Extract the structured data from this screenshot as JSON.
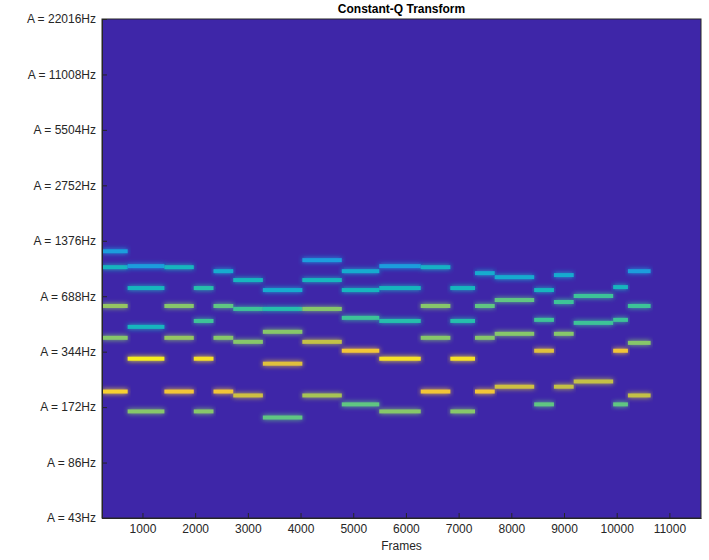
{
  "chart_data": {
    "type": "spectrogram",
    "title": "Constant-Q Transform",
    "x_label": "Frames",
    "log": "y",
    "xlim": [
      232,
      11600
    ],
    "xticks": [
      1000,
      2000,
      3000,
      4000,
      5000,
      6000,
      7000,
      8000,
      9000,
      10000,
      11000
    ],
    "ylim": [
      43,
      22016
    ],
    "yticks": [
      {
        "value": 43,
        "label": "A = 43Hz"
      },
      {
        "value": 86,
        "label": "A = 86Hz"
      },
      {
        "value": 172,
        "label": "A = 172Hz"
      },
      {
        "value": 344,
        "label": "A = 344Hz"
      },
      {
        "value": 688,
        "label": "A = 688Hz"
      },
      {
        "value": 1376,
        "label": "A = 1376Hz"
      },
      {
        "value": 2752,
        "label": "A = 2752Hz"
      },
      {
        "value": 5504,
        "label": "A = 5504Hz"
      },
      {
        "value": 11008,
        "label": "A = 11008Hz"
      },
      {
        "value": 22016,
        "label": "A = 22016Hz"
      }
    ],
    "clim": [
      0,
      1
    ],
    "segments": [
      {
        "x0": 232,
        "x1": 719,
        "freq": 209,
        "level": 0.85
      },
      {
        "x0": 232,
        "x1": 719,
        "freq": 409,
        "level": 0.6
      },
      {
        "x0": 232,
        "x1": 719,
        "freq": 609,
        "level": 0.62
      },
      {
        "x0": 232,
        "x1": 719,
        "freq": 989,
        "level": 0.4
      },
      {
        "x0": 232,
        "x1": 719,
        "freq": 1207,
        "level": 0.3
      },
      {
        "x0": 719,
        "x1": 1416,
        "freq": 163,
        "level": 0.6
      },
      {
        "x0": 719,
        "x1": 1416,
        "freq": 315,
        "level": 0.95
      },
      {
        "x0": 719,
        "x1": 1416,
        "freq": 469,
        "level": 0.4
      },
      {
        "x0": 719,
        "x1": 1416,
        "freq": 762,
        "level": 0.4
      },
      {
        "x0": 719,
        "x1": 1416,
        "freq": 1002,
        "level": 0.3
      },
      {
        "x0": 1416,
        "x1": 1974,
        "freq": 209,
        "level": 0.8
      },
      {
        "x0": 1416,
        "x1": 1974,
        "freq": 409,
        "level": 0.62
      },
      {
        "x0": 1416,
        "x1": 1974,
        "freq": 609,
        "level": 0.6
      },
      {
        "x0": 1416,
        "x1": 1974,
        "freq": 989,
        "level": 0.4
      },
      {
        "x0": 1974,
        "x1": 2348,
        "freq": 163,
        "level": 0.6
      },
      {
        "x0": 1974,
        "x1": 2348,
        "freq": 315,
        "level": 0.9
      },
      {
        "x0": 1974,
        "x1": 2348,
        "freq": 505,
        "level": 0.5
      },
      {
        "x0": 1974,
        "x1": 2348,
        "freq": 762,
        "level": 0.45
      },
      {
        "x0": 2348,
        "x1": 2723,
        "freq": 209,
        "level": 0.8
      },
      {
        "x0": 2348,
        "x1": 2723,
        "freq": 409,
        "level": 0.6
      },
      {
        "x0": 2348,
        "x1": 2723,
        "freq": 609,
        "level": 0.55
      },
      {
        "x0": 2348,
        "x1": 2723,
        "freq": 941,
        "level": 0.35
      },
      {
        "x0": 2723,
        "x1": 3285,
        "freq": 199,
        "level": 0.72
      },
      {
        "x0": 2723,
        "x1": 3285,
        "freq": 389,
        "level": 0.6
      },
      {
        "x0": 2723,
        "x1": 3285,
        "freq": 587,
        "level": 0.5
      },
      {
        "x0": 2723,
        "x1": 3285,
        "freq": 842,
        "level": 0.4
      },
      {
        "x0": 3285,
        "x1": 4034,
        "freq": 151,
        "level": 0.55
      },
      {
        "x0": 3285,
        "x1": 4034,
        "freq": 296,
        "level": 0.75
      },
      {
        "x0": 3285,
        "x1": 4034,
        "freq": 441,
        "level": 0.6
      },
      {
        "x0": 3285,
        "x1": 4034,
        "freq": 587,
        "level": 0.45
      },
      {
        "x0": 3285,
        "x1": 4034,
        "freq": 743,
        "level": 0.35
      },
      {
        "x0": 4034,
        "x1": 4783,
        "freq": 199,
        "level": 0.65
      },
      {
        "x0": 4034,
        "x1": 4783,
        "freq": 389,
        "level": 0.7
      },
      {
        "x0": 4034,
        "x1": 4783,
        "freq": 587,
        "level": 0.6
      },
      {
        "x0": 4034,
        "x1": 4783,
        "freq": 842,
        "level": 0.4
      },
      {
        "x0": 4034,
        "x1": 4783,
        "freq": 1080,
        "level": 0.3
      },
      {
        "x0": 4783,
        "x1": 5494,
        "freq": 178,
        "level": 0.55
      },
      {
        "x0": 4783,
        "x1": 5494,
        "freq": 348,
        "level": 0.8
      },
      {
        "x0": 4783,
        "x1": 5494,
        "freq": 525,
        "level": 0.5
      },
      {
        "x0": 4783,
        "x1": 5494,
        "freq": 743,
        "level": 0.4
      },
      {
        "x0": 4783,
        "x1": 5494,
        "freq": 941,
        "level": 0.35
      },
      {
        "x0": 5494,
        "x1": 6281,
        "freq": 163,
        "level": 0.6
      },
      {
        "x0": 5494,
        "x1": 6281,
        "freq": 315,
        "level": 0.9
      },
      {
        "x0": 5494,
        "x1": 6281,
        "freq": 505,
        "level": 0.45
      },
      {
        "x0": 5494,
        "x1": 6281,
        "freq": 762,
        "level": 0.4
      },
      {
        "x0": 5494,
        "x1": 6281,
        "freq": 1002,
        "level": 0.3
      },
      {
        "x0": 6281,
        "x1": 6843,
        "freq": 209,
        "level": 0.8
      },
      {
        "x0": 6281,
        "x1": 6843,
        "freq": 409,
        "level": 0.6
      },
      {
        "x0": 6281,
        "x1": 6843,
        "freq": 609,
        "level": 0.6
      },
      {
        "x0": 6281,
        "x1": 6843,
        "freq": 989,
        "level": 0.38
      },
      {
        "x0": 6843,
        "x1": 7311,
        "freq": 163,
        "level": 0.6
      },
      {
        "x0": 6843,
        "x1": 7311,
        "freq": 315,
        "level": 0.9
      },
      {
        "x0": 6843,
        "x1": 7311,
        "freq": 505,
        "level": 0.45
      },
      {
        "x0": 6843,
        "x1": 7311,
        "freq": 762,
        "level": 0.4
      },
      {
        "x0": 7311,
        "x1": 7685,
        "freq": 209,
        "level": 0.8
      },
      {
        "x0": 7311,
        "x1": 7685,
        "freq": 409,
        "level": 0.6
      },
      {
        "x0": 7311,
        "x1": 7685,
        "freq": 609,
        "level": 0.55
      },
      {
        "x0": 7311,
        "x1": 7685,
        "freq": 918,
        "level": 0.35
      },
      {
        "x0": 7685,
        "x1": 8434,
        "freq": 222,
        "level": 0.72
      },
      {
        "x0": 7685,
        "x1": 8434,
        "freq": 430,
        "level": 0.6
      },
      {
        "x0": 7685,
        "x1": 8434,
        "freq": 656,
        "level": 0.55
      },
      {
        "x0": 7685,
        "x1": 8434,
        "freq": 873,
        "level": 0.35
      },
      {
        "x0": 8434,
        "x1": 8809,
        "freq": 178,
        "level": 0.55
      },
      {
        "x0": 8434,
        "x1": 8809,
        "freq": 348,
        "level": 0.75
      },
      {
        "x0": 8434,
        "x1": 8809,
        "freq": 512,
        "level": 0.5
      },
      {
        "x0": 8434,
        "x1": 8809,
        "freq": 743,
        "level": 0.4
      },
      {
        "x0": 8809,
        "x1": 9184,
        "freq": 222,
        "level": 0.7
      },
      {
        "x0": 8809,
        "x1": 9184,
        "freq": 430,
        "level": 0.6
      },
      {
        "x0": 8809,
        "x1": 9184,
        "freq": 640,
        "level": 0.5
      },
      {
        "x0": 8809,
        "x1": 9184,
        "freq": 896,
        "level": 0.35
      },
      {
        "x0": 9184,
        "x1": 9933,
        "freq": 237,
        "level": 0.7
      },
      {
        "x0": 9184,
        "x1": 9933,
        "freq": 493,
        "level": 0.5
      },
      {
        "x0": 9184,
        "x1": 9933,
        "freq": 690,
        "level": 0.5
      },
      {
        "x0": 9933,
        "x1": 10213,
        "freq": 178,
        "level": 0.55
      },
      {
        "x0": 9933,
        "x1": 10213,
        "freq": 348,
        "level": 0.8
      },
      {
        "x0": 9933,
        "x1": 10213,
        "freq": 512,
        "level": 0.5
      },
      {
        "x0": 9933,
        "x1": 10213,
        "freq": 771,
        "level": 0.4
      },
      {
        "x0": 10213,
        "x1": 10644,
        "freq": 199,
        "level": 0.7
      },
      {
        "x0": 10213,
        "x1": 10644,
        "freq": 384,
        "level": 0.6
      },
      {
        "x0": 10213,
        "x1": 10644,
        "freq": 609,
        "level": 0.5
      },
      {
        "x0": 10213,
        "x1": 10644,
        "freq": 941,
        "level": 0.3
      }
    ]
  }
}
